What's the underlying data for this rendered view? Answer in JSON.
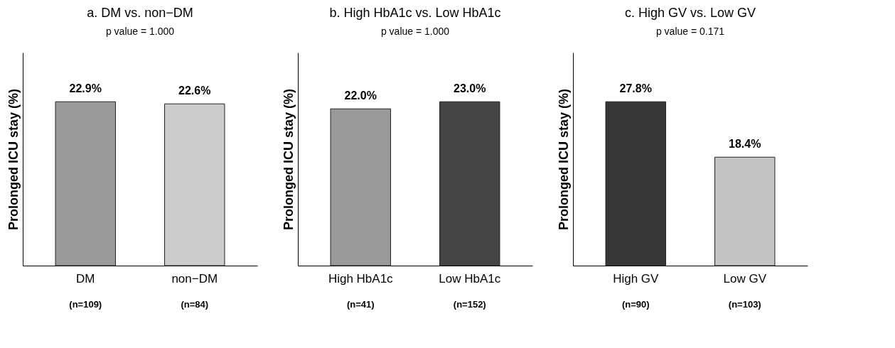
{
  "chart_data": [
    {
      "type": "bar",
      "title": "a. DM vs. non−DM",
      "subtitle": "p value =  1.000",
      "ylabel": "Prolonged ICU stay (%)",
      "categories": [
        "DM",
        "non−DM"
      ],
      "values": [
        22.9,
        22.6
      ],
      "value_labels": [
        "22.9%",
        "22.6%"
      ],
      "colors": [
        "#9a9a9a",
        "#cccccc"
      ],
      "annotations": [
        "(n=109)",
        "(n=84)"
      ],
      "tick_labels": "x",
      "grid": false
    },
    {
      "type": "bar",
      "title": "b. High HbA1c vs. Low HbA1c",
      "subtitle": "p value  = 1.000",
      "ylabel": "Prolonged ICU stay (%)",
      "categories": [
        "High HbA1c",
        "Low HbA1c"
      ],
      "values": [
        22.0,
        23.0
      ],
      "value_labels": [
        "22.0%",
        "23.0%"
      ],
      "colors": [
        "#9a9a9a",
        "#444444"
      ],
      "annotations": [
        "(n=41)",
        "(n=152)"
      ],
      "tick_labels": "x",
      "grid": false
    },
    {
      "type": "bar",
      "title": "c. High GV vs. Low GV",
      "subtitle": "p value  = 0.171",
      "ylabel": "Prolonged ICU stay (%)",
      "categories": [
        "High GV",
        "Low GV"
      ],
      "values": [
        27.8,
        18.4
      ],
      "value_labels": [
        "27.8%",
        "18.4%"
      ],
      "colors": [
        "#363636",
        "#c4c4c4"
      ],
      "annotations": [
        "(n=90)",
        "(n=103)"
      ],
      "tick_labels": "x",
      "grid": false
    }
  ]
}
